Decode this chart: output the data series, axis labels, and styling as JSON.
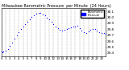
{
  "title": "Milwaukee Barometric Pressure  per Minute  (24 Hours)",
  "title_fontsize": 3.5,
  "bg_color": "#ffffff",
  "dot_color": "#0000ff",
  "dot_size": 0.8,
  "legend_color": "#0000ff",
  "ylim": [
    29.35,
    30.15
  ],
  "xlim": [
    0,
    1440
  ],
  "yticks": [
    29.4,
    29.5,
    29.6,
    29.7,
    29.8,
    29.9,
    30.0,
    30.1
  ],
  "ytick_fontsize": 3.0,
  "xtick_fontsize": 2.8,
  "grid_color": "#999999",
  "grid_style": "--",
  "grid_linewidth": 0.3,
  "xtick_positions": [
    0,
    60,
    120,
    180,
    240,
    300,
    360,
    420,
    480,
    540,
    600,
    660,
    720,
    780,
    840,
    900,
    960,
    1020,
    1080,
    1140,
    1200,
    1260,
    1320,
    1380
  ],
  "xtick_labels": [
    "0",
    "1",
    "2",
    "3",
    "4",
    "5",
    "6",
    "7",
    "8",
    "9",
    "10",
    "11",
    "12",
    "13",
    "14",
    "15",
    "16",
    "17",
    "18",
    "19",
    "20",
    "21",
    "22",
    "23"
  ],
  "data_x": [
    0,
    10,
    30,
    60,
    90,
    120,
    150,
    180,
    210,
    240,
    270,
    300,
    330,
    360,
    390,
    420,
    450,
    480,
    510,
    540,
    570,
    600,
    630,
    660,
    690,
    720,
    750,
    780,
    810,
    840,
    870,
    900,
    930,
    960,
    990,
    1020,
    1050,
    1080,
    1110,
    1140,
    1170,
    1200,
    1230,
    1260,
    1290,
    1320,
    1350,
    1380,
    1410,
    1440
  ],
  "data_y": [
    29.42,
    29.41,
    29.43,
    29.44,
    29.47,
    29.52,
    29.58,
    29.64,
    29.7,
    29.75,
    29.8,
    29.85,
    29.89,
    29.93,
    29.97,
    30.01,
    30.04,
    30.06,
    30.07,
    30.07,
    30.05,
    30.03,
    30.0,
    29.97,
    29.93,
    29.89,
    29.85,
    29.82,
    29.79,
    29.78,
    29.79,
    29.8,
    29.82,
    29.83,
    29.84,
    29.85,
    29.86,
    29.82,
    29.78,
    29.75,
    29.73,
    29.76,
    29.79,
    29.8,
    29.81,
    29.78,
    29.75,
    29.74,
    29.73,
    29.72
  ]
}
